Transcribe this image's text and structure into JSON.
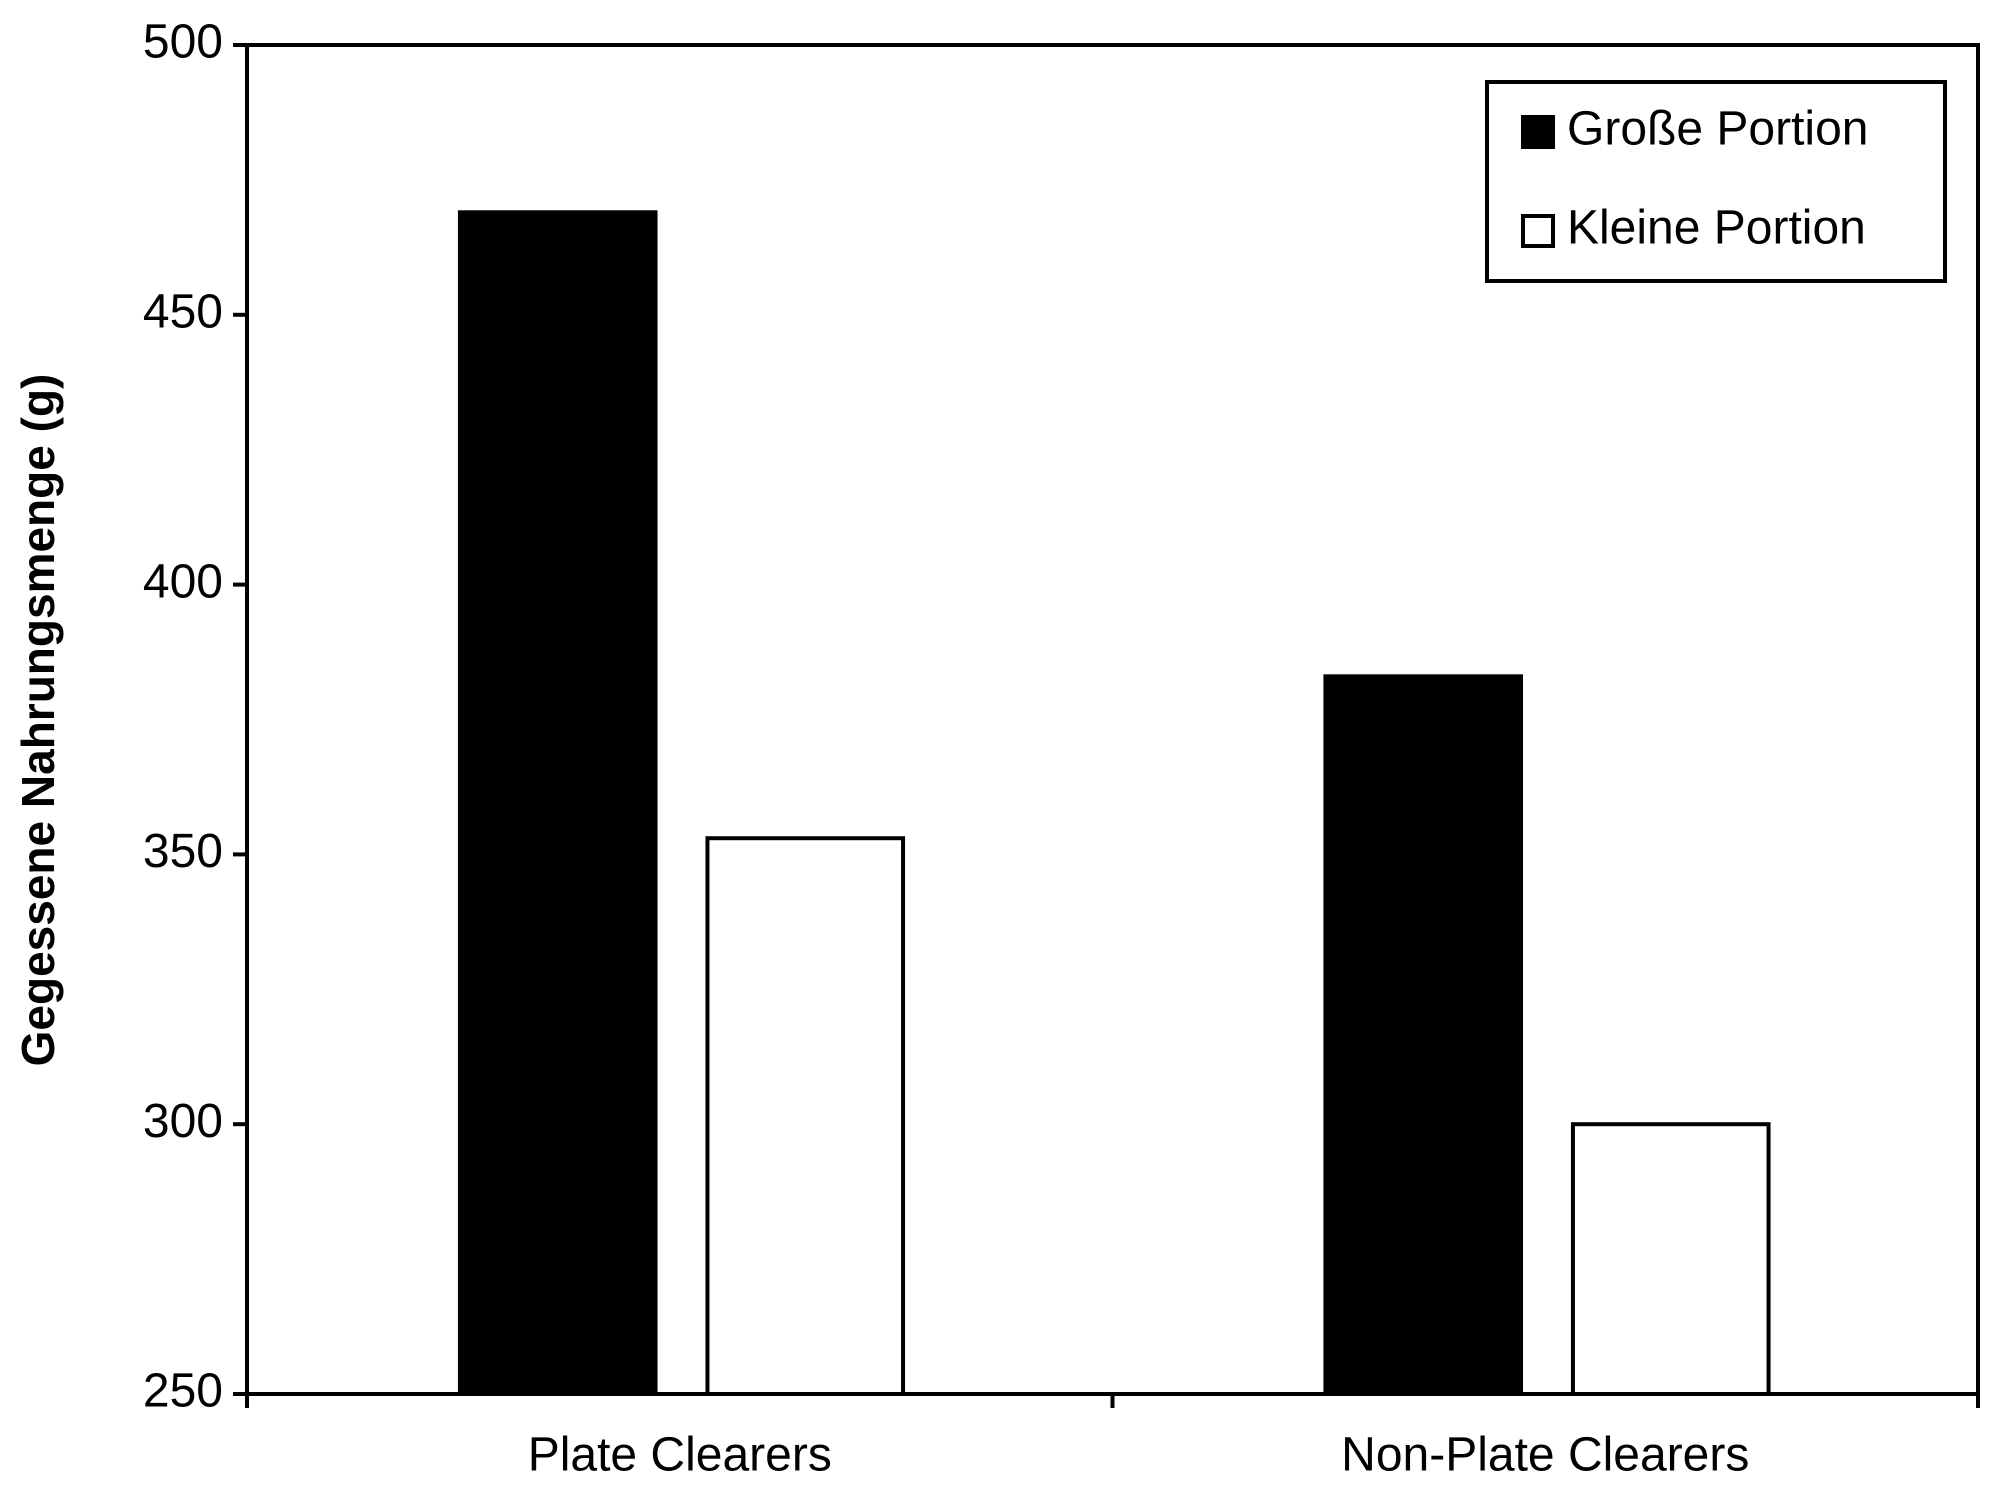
{
  "chart_data": {
    "type": "bar",
    "y_label": "Gegessene Nahrungsmenge (g)",
    "categories": [
      "Plate Clearers",
      "Non-Plate Clearers"
    ],
    "series": [
      {
        "name": "Große Portion",
        "color": "#000000",
        "values": [
          469,
          383
        ]
      },
      {
        "name": "Kleine Portion",
        "color": "#ffffff",
        "values": [
          353,
          300
        ]
      }
    ],
    "ylim": [
      250,
      500
    ],
    "yticks": [
      250,
      300,
      350,
      400,
      450,
      500
    ],
    "legend": "upper right",
    "grid": false
  }
}
